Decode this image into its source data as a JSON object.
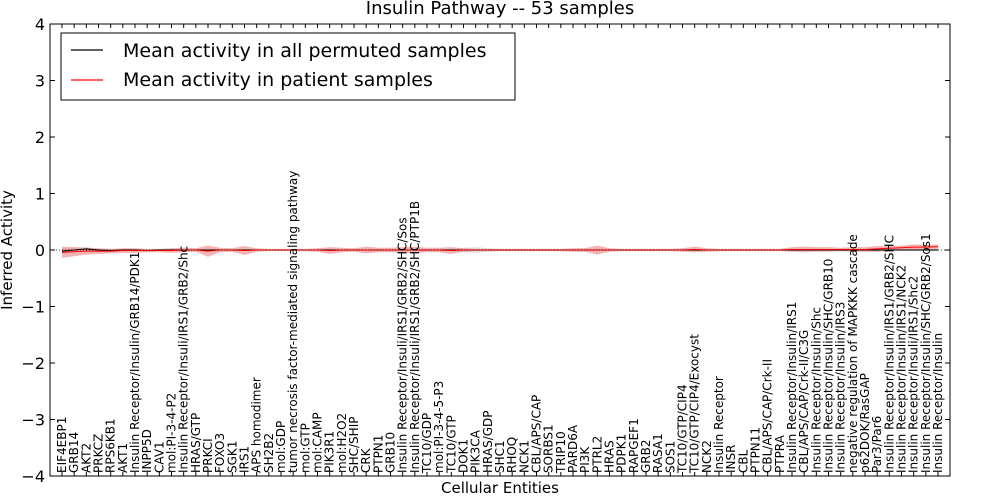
{
  "chart_data": {
    "type": "line",
    "title": "Insulin Pathway -- 53 samples",
    "xlabel": "Cellular Entities",
    "ylabel": "Inferred Activity",
    "ylim": [
      -4,
      4
    ],
    "yticks": [
      "−4",
      "−3",
      "−2",
      "−1",
      "0",
      "1",
      "2",
      "3",
      "4"
    ],
    "legend_position": "top-left",
    "categories": [
      "EIF4EBP1",
      "GRB14",
      "AKT2",
      "PRKCZ",
      "RPS6KB1",
      "AKT1",
      "Insulin Receptor/Insulin/GRB14/PDK1",
      "INPP5D",
      "CAV1",
      "mol:PI-3-4-P2",
      "Insulin Receptor/Insuli/IRS1/GRB2/Shc",
      "HRAS/GTP",
      "PRKCI",
      "FOXO3",
      "SGK1",
      "IRS1",
      "APS homodimer",
      "SH2B2",
      "mol:GDP",
      "tumor necrosis factor-mediated signaling pathway",
      "mol:GTP",
      "mol:CAMP",
      "PIK3R1",
      "mol:H2O2",
      "SHC/SHIP",
      "CRK",
      "PTPN1",
      "GRB10",
      "Insulin Receptor/Insuli/IRS1/GRB2/SHC/Sos",
      "Insulin Receptor/Insuli/IRS1/GRB2/SHC/PTP1B",
      "TC10/GDP",
      "mol:PI-3-4-5-P3",
      "TC10/GTP",
      "DOK1",
      "PIK3CA",
      "HRAS/GDP",
      "SHC1",
      "RHOQ",
      "NCK1",
      "CBL/APS/CAP",
      "SORBS1",
      "TRIP10",
      "PARD6A",
      "PI3K",
      "PTRL2",
      "HRAS",
      "PDPK1",
      "RAPGEF1",
      "GRB2",
      "RASA1",
      "SOS1",
      "TC10/GTP/CIP4",
      "TC10/GTP/CIP4/Exocyst",
      "NCK2",
      "Insulin Receptor",
      "INSR",
      "CBL",
      "PTPN11",
      "CBL/APS/CAP/Crk-II",
      "PTPRA",
      "Insulin Receptor/Insulin/IRS1",
      "CBL/APS/CAP/Crk-II/C3G",
      "Insulin Receptor/Insulin/Shc",
      "Insulin Receptor/Insulin/SHC/GRB10",
      "Insulin Receptor/Insulin/IRS3",
      "negative regulation of MAPKKK cascade",
      "p62DOK/RasGAP",
      "Par3/Par6",
      "Insulin Receptor/Insulin/IRS1/GRB2/SHC",
      "Insulin Receptor/Insulin/IRS1/NCK2",
      "Insulin Receptor/Insuli/IRS1/Shc2",
      "Insulin Receptor/Insulin/SHC/GRB2/Sos1",
      "Insulin Receptor/Insulin"
    ],
    "series": [
      {
        "name": "Mean activity in all permuted samples",
        "color": "#000000",
        "band_color": "#bbbbbb",
        "values": [
          -0.02,
          0.0,
          0.02,
          0.0,
          -0.01,
          0.0,
          0.0,
          -0.01,
          0.0,
          0.0,
          0.0,
          0.0,
          0.0,
          0.0,
          0.0,
          0.0,
          0.0,
          0.0,
          0.0,
          0.0,
          0.0,
          0.0,
          0.0,
          0.0,
          0.0,
          0.0,
          0.0,
          0.0,
          0.0,
          0.0,
          0.0,
          0.0,
          0.0,
          0.0,
          0.0,
          0.0,
          0.0,
          0.0,
          0.0,
          0.0,
          0.0,
          0.0,
          0.0,
          0.0,
          0.0,
          0.0,
          0.0,
          0.0,
          0.0,
          0.0,
          0.0,
          0.0,
          0.0,
          0.0,
          0.0,
          0.0,
          0.0,
          0.0,
          0.0,
          0.0,
          0.0,
          0.0,
          0.0,
          0.0,
          0.0,
          0.0,
          0.0,
          0.0,
          0.0,
          0.0,
          0.0,
          0.0,
          0.0
        ],
        "spread": [
          0.05,
          0.04,
          0.03,
          0.02,
          0.02,
          0.02,
          0.02,
          0.02,
          0.02,
          0.02,
          0.02,
          0.02,
          0.02,
          0.02,
          0.02,
          0.02,
          0.01,
          0.01,
          0.01,
          0.01,
          0.01,
          0.01,
          0.02,
          0.02,
          0.02,
          0.02,
          0.02,
          0.02,
          0.02,
          0.02,
          0.02,
          0.02,
          0.02,
          0.04,
          0.05,
          0.03,
          0.02,
          0.02,
          0.02,
          0.02,
          0.02,
          0.02,
          0.02,
          0.03,
          0.02,
          0.02,
          0.02,
          0.02,
          0.02,
          0.02,
          0.02,
          0.02,
          0.02,
          0.02,
          0.02,
          0.02,
          0.02,
          0.02,
          0.02,
          0.02,
          0.02,
          0.02,
          0.02,
          0.02,
          0.02,
          0.02,
          0.02,
          0.02,
          0.02,
          0.02,
          0.02,
          0.02,
          0.02
        ]
      },
      {
        "name": "Mean activity in patient samples",
        "color": "#ff0000",
        "band_color": "#f08080",
        "values": [
          -0.04,
          -0.03,
          -0.02,
          -0.02,
          -0.02,
          -0.01,
          -0.01,
          -0.01,
          -0.01,
          -0.01,
          0.0,
          0.0,
          -0.02,
          0.0,
          0.0,
          -0.01,
          0.0,
          0.0,
          0.0,
          0.0,
          0.0,
          0.0,
          -0.01,
          0.0,
          0.0,
          0.0,
          0.0,
          0.0,
          0.0,
          0.0,
          0.0,
          0.0,
          -0.01,
          0.0,
          0.0,
          0.0,
          0.0,
          0.0,
          0.0,
          0.0,
          0.0,
          0.0,
          0.0,
          0.0,
          0.0,
          0.0,
          0.0,
          0.0,
          0.0,
          0.0,
          0.0,
          0.0,
          0.01,
          0.0,
          0.0,
          0.0,
          0.0,
          0.0,
          0.0,
          0.0,
          0.01,
          0.01,
          0.01,
          0.01,
          0.01,
          0.01,
          0.01,
          0.02,
          0.03,
          0.04,
          0.05,
          0.05,
          0.06
        ],
        "spread": [
          0.1,
          0.08,
          0.06,
          0.05,
          0.04,
          0.04,
          0.04,
          0.03,
          0.03,
          0.04,
          0.04,
          0.03,
          0.1,
          0.04,
          0.03,
          0.08,
          0.03,
          0.02,
          0.02,
          0.02,
          0.02,
          0.03,
          0.06,
          0.04,
          0.03,
          0.06,
          0.04,
          0.04,
          0.05,
          0.06,
          0.04,
          0.04,
          0.06,
          0.03,
          0.02,
          0.02,
          0.02,
          0.02,
          0.02,
          0.02,
          0.02,
          0.02,
          0.03,
          0.03,
          0.08,
          0.03,
          0.02,
          0.02,
          0.02,
          0.02,
          0.02,
          0.03,
          0.05,
          0.03,
          0.02,
          0.02,
          0.02,
          0.02,
          0.02,
          0.02,
          0.04,
          0.05,
          0.04,
          0.04,
          0.03,
          0.04,
          0.04,
          0.05,
          0.04,
          0.04,
          0.05,
          0.04,
          0.04
        ]
      }
    ]
  }
}
